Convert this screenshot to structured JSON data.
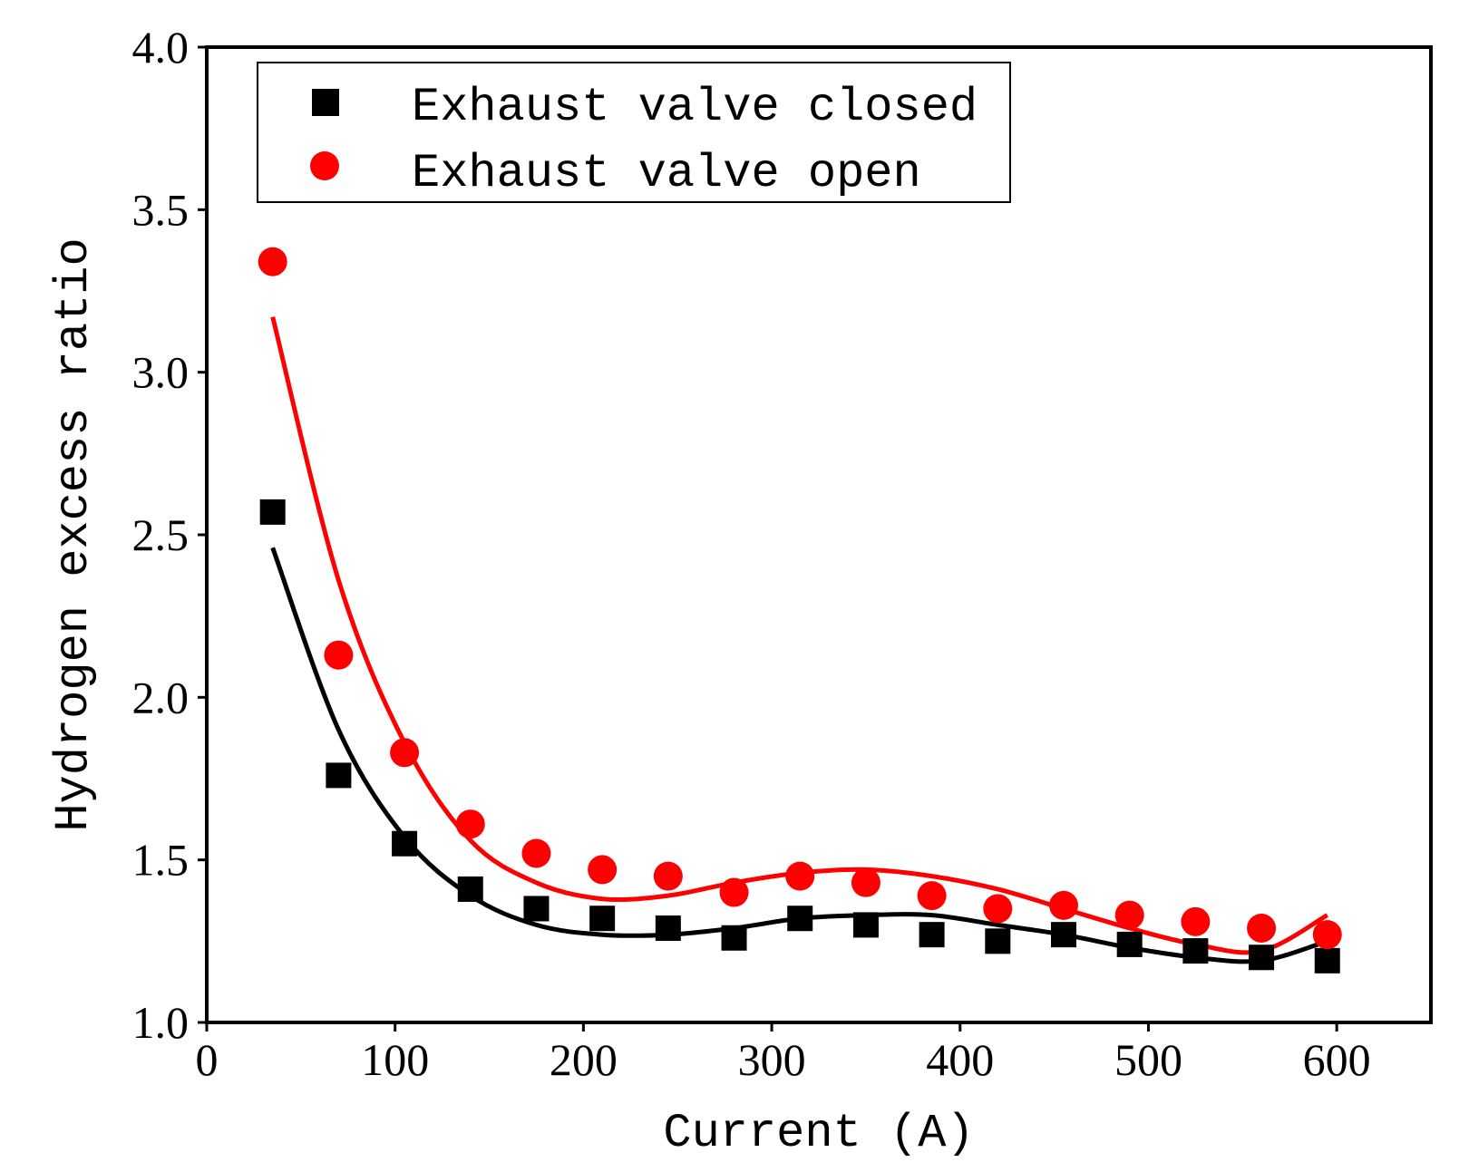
{
  "chart_data": {
    "type": "scatter",
    "title": "",
    "xlabel": "Current (A)",
    "ylabel": "Hydrogen excess ratio",
    "xlim": [
      0,
      650
    ],
    "ylim": [
      1.0,
      4.0
    ],
    "xticks": [
      "0",
      "100",
      "200",
      "300",
      "400",
      "500",
      "600"
    ],
    "yticks": [
      "1.0",
      "1.5",
      "2.0",
      "2.5",
      "3.0",
      "3.5",
      "4.0"
    ],
    "legend_position": "top-left",
    "series": [
      {
        "name": "Exhaust valve closed",
        "marker": "square",
        "color": "#000000",
        "x": [
          35,
          70,
          105,
          140,
          175,
          210,
          245,
          280,
          315,
          350,
          385,
          420,
          455,
          490,
          525,
          560,
          595
        ],
        "y": [
          2.57,
          1.76,
          1.55,
          1.41,
          1.35,
          1.32,
          1.29,
          1.26,
          1.32,
          1.3,
          1.27,
          1.25,
          1.27,
          1.24,
          1.22,
          1.2,
          1.19
        ],
        "fit_x": [
          35,
          70,
          105,
          140,
          175,
          210,
          245,
          280,
          315,
          350,
          385,
          420,
          455,
          490,
          525,
          560,
          595
        ],
        "fit_y": [
          2.46,
          1.9,
          1.57,
          1.39,
          1.3,
          1.27,
          1.27,
          1.29,
          1.32,
          1.33,
          1.33,
          1.3,
          1.27,
          1.23,
          1.2,
          1.19,
          1.25
        ]
      },
      {
        "name": "Exhaust valve open",
        "marker": "circle",
        "color": "#ff0000",
        "x": [
          35,
          70,
          105,
          140,
          175,
          210,
          245,
          280,
          315,
          350,
          385,
          420,
          455,
          490,
          525,
          560,
          595
        ],
        "y": [
          3.34,
          2.13,
          1.83,
          1.61,
          1.52,
          1.47,
          1.45,
          1.4,
          1.45,
          1.43,
          1.39,
          1.35,
          1.36,
          1.33,
          1.31,
          1.29,
          1.27
        ],
        "fit_x": [
          35,
          70,
          105,
          140,
          175,
          210,
          245,
          280,
          315,
          350,
          385,
          420,
          455,
          490,
          525,
          560,
          595
        ],
        "fit_y": [
          3.17,
          2.36,
          1.86,
          1.56,
          1.43,
          1.38,
          1.39,
          1.43,
          1.46,
          1.47,
          1.45,
          1.41,
          1.35,
          1.29,
          1.24,
          1.22,
          1.33
        ]
      }
    ]
  }
}
